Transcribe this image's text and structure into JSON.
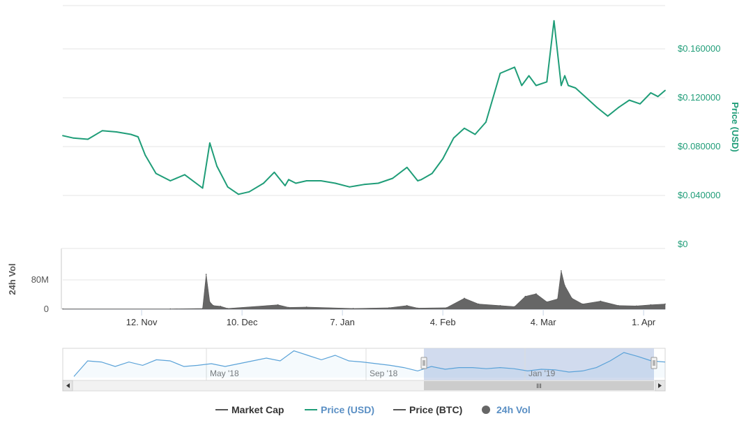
{
  "chart_data": {
    "type": "line",
    "price_axis": {
      "label": "Price (USD)",
      "ticks": [
        "$0.160000",
        "$0.120000",
        "$0.080000",
        "$0.040000",
        "$0"
      ],
      "tick_values": [
        0.16,
        0.12,
        0.08,
        0.04,
        0
      ],
      "range": [
        0,
        0.2
      ],
      "color": "#1f9d78"
    },
    "volume_axis": {
      "label": "24h Vol",
      "ticks": [
        "80M",
        "0"
      ],
      "tick_values": [
        80000000,
        0
      ],
      "range": [
        0,
        120000000
      ],
      "color": "#666666"
    },
    "x_axis": {
      "range": [
        "2018-10-21",
        "2019-04-07"
      ],
      "tick_labels": [
        "12. Nov",
        "10. Dec",
        "7. Jan",
        "4. Feb",
        "4. Mar",
        "1. Apr"
      ],
      "tick_dates": [
        "2018-11-12",
        "2018-12-10",
        "2019-01-07",
        "2019-02-04",
        "2019-03-04",
        "2019-04-01"
      ]
    },
    "series": [
      {
        "name": "Price (USD)",
        "color": "#1f9d78",
        "dates": [
          "2018-10-21",
          "2018-10-24",
          "2018-10-28",
          "2018-11-01",
          "2018-11-05",
          "2018-11-09",
          "2018-11-11",
          "2018-11-13",
          "2018-11-16",
          "2018-11-20",
          "2018-11-24",
          "2018-11-29",
          "2018-12-01",
          "2018-12-03",
          "2018-12-06",
          "2018-12-09",
          "2018-12-12",
          "2018-12-16",
          "2018-12-19",
          "2018-12-22",
          "2018-12-23",
          "2018-12-25",
          "2018-12-28",
          "2019-01-01",
          "2019-01-05",
          "2019-01-09",
          "2019-01-13",
          "2019-01-17",
          "2019-01-21",
          "2019-01-25",
          "2019-01-28",
          "2019-01-29",
          "2019-02-01",
          "2019-02-04",
          "2019-02-07",
          "2019-02-10",
          "2019-02-13",
          "2019-02-16",
          "2019-02-20",
          "2019-02-24",
          "2019-02-26",
          "2019-02-28",
          "2019-03-02",
          "2019-03-05",
          "2019-03-07",
          "2019-03-09",
          "2019-03-10",
          "2019-03-11",
          "2019-03-13",
          "2019-03-16",
          "2019-03-19",
          "2019-03-22",
          "2019-03-25",
          "2019-03-28",
          "2019-03-31",
          "2019-04-03",
          "2019-04-05",
          "2019-04-07"
        ],
        "values": [
          0.089,
          0.087,
          0.086,
          0.093,
          0.092,
          0.09,
          0.088,
          0.073,
          0.058,
          0.052,
          0.057,
          0.046,
          0.083,
          0.064,
          0.047,
          0.041,
          0.043,
          0.05,
          0.059,
          0.048,
          0.053,
          0.05,
          0.052,
          0.052,
          0.05,
          0.047,
          0.049,
          0.05,
          0.054,
          0.063,
          0.052,
          0.053,
          0.058,
          0.07,
          0.087,
          0.095,
          0.09,
          0.1,
          0.14,
          0.145,
          0.13,
          0.138,
          0.13,
          0.133,
          0.183,
          0.13,
          0.138,
          0.13,
          0.128,
          0.12,
          0.112,
          0.105,
          0.112,
          0.118,
          0.115,
          0.124,
          0.121,
          0.126
        ]
      },
      {
        "name": "24h Vol",
        "color": "#666666",
        "dates": [
          "2018-10-21",
          "2018-11-20",
          "2018-11-29",
          "2018-11-30",
          "2018-12-01",
          "2018-12-02",
          "2018-12-04",
          "2018-12-06",
          "2018-12-20",
          "2018-12-23",
          "2018-12-28",
          "2019-01-10",
          "2019-01-20",
          "2019-01-25",
          "2019-01-28",
          "2019-02-05",
          "2019-02-10",
          "2019-02-14",
          "2019-02-20",
          "2019-02-24",
          "2019-02-27",
          "2019-03-02",
          "2019-03-05",
          "2019-03-08",
          "2019-03-09",
          "2019-03-10",
          "2019-03-12",
          "2019-03-15",
          "2019-03-20",
          "2019-03-25",
          "2019-03-30",
          "2019-04-03",
          "2019-04-07"
        ],
        "values": [
          1000000,
          1000000,
          2000000,
          95000000,
          20000000,
          10000000,
          8000000,
          2000000,
          12000000,
          5000000,
          6000000,
          2000000,
          4000000,
          10000000,
          3000000,
          4000000,
          30000000,
          14000000,
          10000000,
          7000000,
          35000000,
          42000000,
          20000000,
          28000000,
          105000000,
          65000000,
          30000000,
          14000000,
          22000000,
          10000000,
          9000000,
          12000000,
          14000000
        ]
      }
    ],
    "navigator": {
      "labels": [
        "May '18",
        "Sep '18",
        "Jan '19"
      ],
      "values": [
        0.02,
        0.3,
        0.28,
        0.2,
        0.28,
        0.22,
        0.32,
        0.3,
        0.2,
        0.22,
        0.25,
        0.2,
        0.25,
        0.3,
        0.35,
        0.3,
        0.48,
        0.4,
        0.32,
        0.4,
        0.3,
        0.28,
        0.25,
        0.22,
        0.18,
        0.12,
        0.2,
        0.15,
        0.18,
        0.18,
        0.16,
        0.18,
        0.16,
        0.12,
        0.15,
        0.14,
        0.1,
        0.12,
        0.18,
        0.3,
        0.45,
        0.38,
        0.3,
        0.28
      ],
      "line_color": "#5aa2d8",
      "selection_color": "#c5d2ea"
    },
    "legend": [
      {
        "label": "Market Cap",
        "symbol": "line",
        "color": "#555555"
      },
      {
        "label": "Price (USD)",
        "symbol": "line",
        "color": "#1f9d78",
        "text_color": "#5a8fc4"
      },
      {
        "label": "Price (BTC)",
        "symbol": "line",
        "color": "#555555"
      },
      {
        "label": "24h Vol",
        "symbol": "dot",
        "color": "#666666",
        "text_color": "#5a8fc4"
      }
    ],
    "scrollbar": {
      "grip": "III"
    }
  }
}
